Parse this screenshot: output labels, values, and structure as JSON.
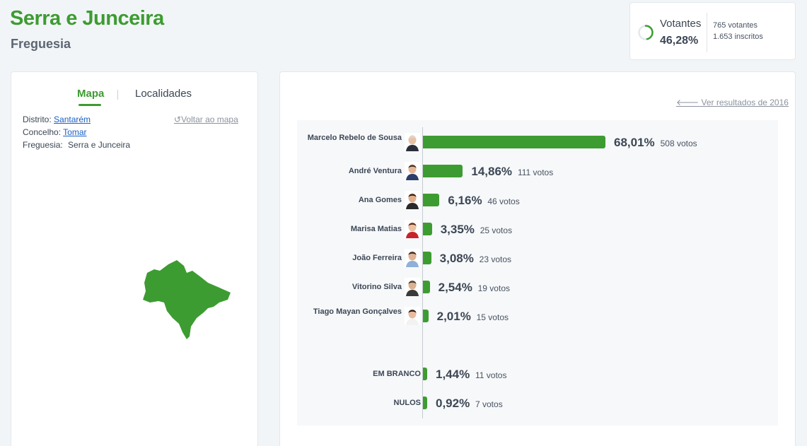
{
  "header": {
    "title": "Serra e Junceira",
    "subtitle": "Freguesia"
  },
  "turnout": {
    "label": "Votantes",
    "percent_text": "46,28%",
    "percent": 46.28,
    "voters": "765 votantes",
    "registered": "1.653 inscritos"
  },
  "left_panel": {
    "tabs": {
      "map": "Mapa",
      "localities": "Localidades"
    },
    "district_label": "Distrito:",
    "district": "Santarém",
    "council_label": "Concelho:",
    "council": "Tomar",
    "parish_label": "Freguesia:",
    "parish": "Serra e Junceira",
    "back_to_map": "Voltar ao mapa"
  },
  "right_panel": {
    "previous_results": "Ver resultados de 2016"
  },
  "colors": {
    "accent": "#3d9c31"
  },
  "chart_data": {
    "type": "bar",
    "orientation": "horizontal",
    "xlim": [
      0,
      100
    ],
    "categories": [
      "Marcelo Rebelo de Sousa",
      "André Ventura",
      "Ana Gomes",
      "Marisa Matias",
      "João Ferreira",
      "Vitorino Silva",
      "Tiago Mayan Gonçalves",
      "EM BRANCO",
      "NULOS"
    ],
    "values": [
      68.01,
      14.86,
      6.16,
      3.35,
      3.08,
      2.54,
      2.01,
      1.44,
      0.92
    ],
    "percent_labels": [
      "68,01%",
      "14,86%",
      "6,16%",
      "3,35%",
      "3,08%",
      "2,54%",
      "2,01%",
      "1,44%",
      "0,92%"
    ],
    "vote_labels": [
      "508 votos",
      "111 votos",
      "46 votos",
      "25 votos",
      "23 votos",
      "19 votos",
      "15 votos",
      "11 votos",
      "7 votos"
    ],
    "has_photo": [
      true,
      true,
      true,
      true,
      true,
      true,
      true,
      false,
      false
    ]
  }
}
